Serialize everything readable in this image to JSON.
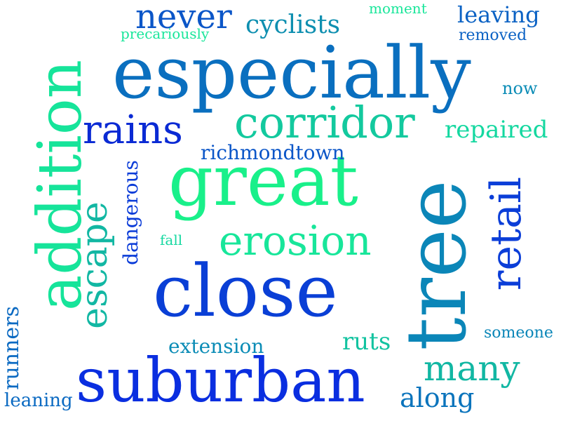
{
  "words": [
    {
      "text": "especially",
      "color": "#0a6fbf"
    },
    {
      "text": "great",
      "color": "#19f08a"
    },
    {
      "text": "close",
      "color": "#0a3fd6"
    },
    {
      "text": "suburban",
      "color": "#0a2ee0"
    },
    {
      "text": "tree",
      "color": "#0b86b8"
    },
    {
      "text": "addition",
      "color": "#16e49a"
    },
    {
      "text": "retail",
      "color": "#0b3ed8"
    },
    {
      "text": "corridor",
      "color": "#13c99e"
    },
    {
      "text": "erosion",
      "color": "#18e69a"
    },
    {
      "text": "rains",
      "color": "#0a2ad4"
    },
    {
      "text": "escape",
      "color": "#12b7a3"
    },
    {
      "text": "never",
      "color": "#0b56c8"
    },
    {
      "text": "cyclists",
      "color": "#0e8fb0"
    },
    {
      "text": "many",
      "color": "#12b7a3"
    },
    {
      "text": "leaving",
      "color": "#0b62c4"
    },
    {
      "text": "repaired",
      "color": "#15d8a0"
    },
    {
      "text": "richmondtown",
      "color": "#0b56c8"
    },
    {
      "text": "dangerous",
      "color": "#0b3cd8"
    },
    {
      "text": "runners",
      "color": "#0b6ac2"
    },
    {
      "text": "extension",
      "color": "#0b8cb6"
    },
    {
      "text": "ruts",
      "color": "#12c3a0"
    },
    {
      "text": "along",
      "color": "#0b74bc"
    },
    {
      "text": "leaning",
      "color": "#0b6ac2"
    },
    {
      "text": "now",
      "color": "#0b8cb6"
    },
    {
      "text": "someone",
      "color": "#0b86b8"
    },
    {
      "text": "removed",
      "color": "#0b62c4"
    },
    {
      "text": "moment",
      "color": "#19e69a"
    },
    {
      "text": "precariously",
      "color": "#19e69a"
    },
    {
      "text": "fall",
      "color": "#15d8a0"
    }
  ]
}
